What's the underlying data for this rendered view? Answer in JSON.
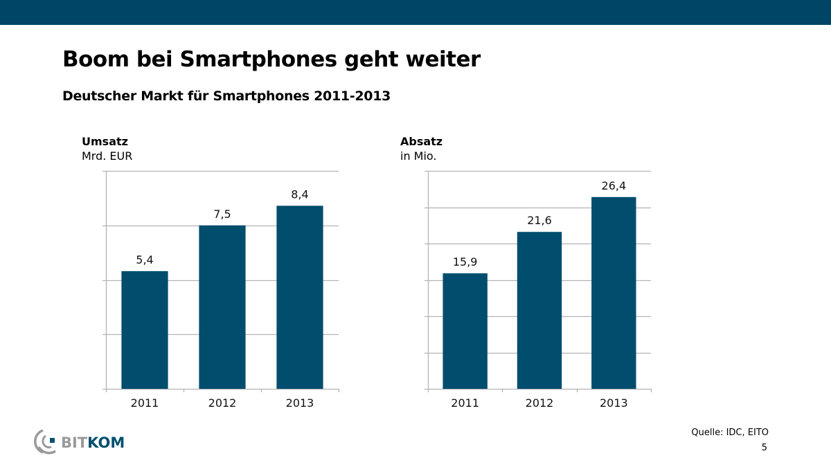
{
  "header": {
    "title": "Boom bei Smartphones geht weiter",
    "subtitle": "Deutscher Markt für Smartphones 2011-2013"
  },
  "colors": {
    "topbar": "#004466",
    "bar": "#004d6d",
    "grid": "#b3b3b3",
    "logo_gray": "#9a9a9a",
    "logo_blue": "#00506e"
  },
  "chart_data": [
    {
      "type": "bar",
      "title": "Umsatz",
      "unit": "Mrd. EUR",
      "categories": [
        "2011",
        "2012",
        "2013"
      ],
      "values": [
        5.4,
        7.5,
        8.4
      ],
      "data_labels": [
        "5,4",
        "7,5",
        "8,4"
      ],
      "ylim": [
        0,
        10
      ],
      "ytick_step": 2.5,
      "grid": true,
      "ytick_labels_visible": false
    },
    {
      "type": "bar",
      "title": "Absatz",
      "unit": "in Mio.",
      "categories": [
        "2011",
        "2012",
        "2013"
      ],
      "values": [
        15.9,
        21.6,
        26.4
      ],
      "data_labels": [
        "15,9",
        "21,6",
        "26,4"
      ],
      "ylim": [
        0,
        30
      ],
      "ytick_step": 5,
      "grid": true,
      "ytick_labels_visible": false
    }
  ],
  "footer": {
    "source": "Quelle: IDC, EITO",
    "page_number": "5",
    "logo": {
      "part1": "BIT",
      "part2": "KOM"
    }
  }
}
